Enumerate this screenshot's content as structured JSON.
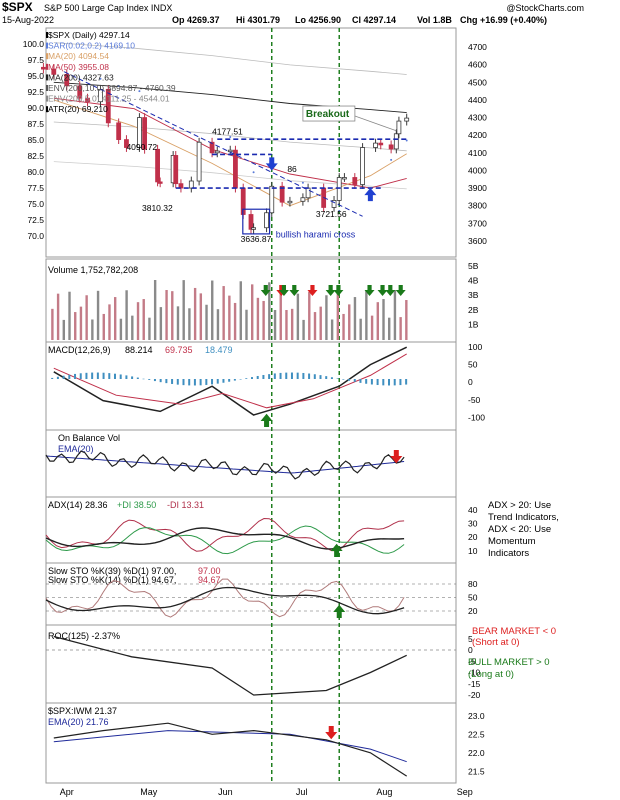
{
  "header": {
    "symbol": "$SPX",
    "name": "S&P 500 Large Cap Index",
    "exchange": "INDX",
    "date": "15-Aug-2022",
    "open": "Op 4269.37",
    "high": "Hi 4301.79",
    "low": "Lo 4256.90",
    "close": "Cl 4297.14",
    "vol": "Vol 1.8B",
    "chg": "Chg +16.99 (+0.40%)",
    "watermark": "@StockCharts.com"
  },
  "colors": {
    "up": "#3a3a3a",
    "down": "#c0304a",
    "ma20": "#d9a066",
    "ma50": "#c0304a",
    "ma200": "#222222",
    "env": "#888888",
    "sar": "#5a7bd8",
    "green_arrow": "#1a7a1a",
    "red_arrow": "#dd1f1f",
    "blue_arrow": "#2040d0",
    "guide_blue": "#1a2ab0",
    "macd_hist": "#3f8fc0",
    "plus_di": "#2e9a4a",
    "minus_di": "#b0304a",
    "ema": "#1f2a9a"
  },
  "x_axis": {
    "months": [
      "Apr",
      "May",
      "Jun",
      "Jul",
      "Aug",
      "Sep"
    ]
  },
  "price_panel": {
    "legend": [
      {
        "text": "$SPX (Daily) 4297.14",
        "color": "#000000"
      },
      {
        "text": "SAR(0.02,0.2) 4169.10",
        "color": "#5a7bd8"
      },
      {
        "text": "MA(20) 4094.54",
        "color": "#d9a066"
      },
      {
        "text": "MA(50) 3955.08",
        "color": "#c0304a"
      },
      {
        "text": "MA(200) 4327.63",
        "color": "#222222"
      },
      {
        "text": "ENV(200,10.0) 3894.87 - 4760.39",
        "color": "#555555"
      },
      {
        "text": "ENV(200,5.0) 4111.25 - 4544.01",
        "color": "#888888"
      },
      {
        "text": "ATR(20) 69.210",
        "color": "#000000"
      }
    ],
    "left_ticks": [
      "100.0",
      "97.5",
      "95.0",
      "92.5",
      "90.0",
      "87.5",
      "85.0",
      "82.5",
      "80.0",
      "77.5",
      "75.0",
      "72.5",
      "70.0"
    ],
    "right_ticks": [
      "4700",
      "4600",
      "4500",
      "4400",
      "4300",
      "4200",
      "4100",
      "4000",
      "3900",
      "3800",
      "3700",
      "3600"
    ],
    "annotations": {
      "breakout": "Breakout",
      "harami": "bullish harami cross",
      "p4177": "4177.51",
      "p4090": "4090.72",
      "p3810": "3810.32",
      "p3636": "3636.87",
      "p3721": "3721.56",
      "p86": "86"
    }
  },
  "volume_panel": {
    "label": "Volume 1,752,782,208",
    "ticks": [
      "5B",
      "4B",
      "3B",
      "2B",
      "1B"
    ]
  },
  "macd_panel": {
    "label": "MACD(12,26,9)",
    "v1": "88.214",
    "v2": "69.735",
    "v3": "18.479",
    "ticks": [
      "100",
      "50",
      "0",
      "-50",
      "-100"
    ]
  },
  "obv_panel": {
    "label": "On Balance Vol",
    "ema_label": "EMA(20)"
  },
  "adx_panel": {
    "label": "ADX(14) 28.36",
    "plus_di": "+DI 38.50",
    "minus_di": "-DI 13.31",
    "ticks": [
      "40",
      "30",
      "20",
      "10"
    ],
    "note": [
      "ADX > 20: Use",
      "Trend Indicators,",
      "ADX < 20: Use",
      "Momentum",
      "Indicators"
    ]
  },
  "sto_panel": {
    "label1": "Slow STO %K(39) %D(1) 97.00,",
    "label1_red": "97.00",
    "label2": "Slow STO %K(14) %D(1) 94.67,",
    "label2_red": "94.67",
    "ticks": [
      "80",
      "50",
      "20"
    ]
  },
  "roc_panel": {
    "label": "ROC(125) -2.37%",
    "ticks": [
      "5",
      "0",
      "-5",
      "-10",
      "-15",
      "-20"
    ],
    "bear": [
      "BEAR MARKET < 0",
      "(Short at 0)"
    ],
    "bull": [
      "BULL MARKET > 0",
      "(Long at 0)"
    ]
  },
  "ratio_panel": {
    "label": "$SPX:IWM 21.37",
    "ema_label": "EMA(20) 21.76",
    "ticks": [
      "23.0",
      "22.5",
      "22.0",
      "21.5"
    ]
  },
  "chart_data": [
    {
      "type": "line",
      "title": "$SPX (Daily) 4297.14",
      "series": [
        {
          "name": "$SPX (Daily) 4297.14",
          "points": [
            [
              "Mar-28",
              4575
            ],
            [
              "Apr-01",
              4545
            ],
            [
              "Apr-06",
              4480
            ],
            [
              "Apr-11",
              4410
            ],
            [
              "Apr-14",
              4390
            ],
            [
              "Apr-19",
              4460
            ],
            [
              "Apr-22",
              4270
            ],
            [
              "Apr-26",
              4175
            ],
            [
              "Apr-29",
              4130
            ],
            [
              "May-04",
              4300
            ],
            [
              "May-06",
              4120
            ],
            [
              "May-11",
              3935
            ],
            [
              "May-12",
              3930
            ],
            [
              "May-17",
              4085
            ],
            [
              "May-18",
              3925
            ],
            [
              "May-20",
              3900
            ],
            [
              "May-24",
              3940
            ],
            [
              "May-27",
              4160
            ],
            [
              "Jun-01",
              4100
            ],
            [
              "Jun-03",
              4110
            ],
            [
              "Jun-08",
              4115
            ],
            [
              "Jun-10",
              3900
            ],
            [
              "Jun-13",
              3750
            ],
            [
              "Jun-16",
              3666
            ],
            [
              "Jun-17",
              3675
            ],
            [
              "Jun-22",
              3760
            ],
            [
              "Jun-24",
              3910
            ],
            [
              "Jun-28",
              3820
            ],
            [
              "Jul-01",
              3825
            ],
            [
              "Jul-06",
              3845
            ],
            [
              "Jul-08",
              3900
            ],
            [
              "Jul-14",
              3790
            ],
            [
              "Jul-18",
              3830
            ],
            [
              "Jul-20",
              3960
            ],
            [
              "Jul-22",
              3960
            ],
            [
              "Jul-26",
              3920
            ],
            [
              "Jul-29",
              4130
            ],
            [
              "Aug-03",
              4155
            ],
            [
              "Aug-05",
              4145
            ],
            [
              "Aug-09",
              4122
            ],
            [
              "Aug-11",
              4208
            ],
            [
              "Aug-12",
              4280
            ],
            [
              "Aug-15",
              4297
            ]
          ]
        },
        {
          "name": "MA(200) 4327.63",
          "points": [
            [
              "Apr-01",
              4500
            ],
            [
              "May-02",
              4470
            ],
            [
              "Jun-01",
              4430
            ],
            [
              "Jul-01",
              4380
            ],
            [
              "Aug-01",
              4345
            ],
            [
              "Aug-15",
              4328
            ]
          ]
        },
        {
          "name": "MA(50) 3955.08",
          "points": [
            [
              "Apr-01",
              4410
            ],
            [
              "May-02",
              4350
            ],
            [
              "Jun-01",
              4120
            ],
            [
              "Jul-01",
              3980
            ],
            [
              "Aug-01",
              3900
            ],
            [
              "Aug-15",
              3955
            ]
          ]
        },
        {
          "name": "MA(20) 4094.54",
          "points": [
            [
              "Apr-01",
              4400
            ],
            [
              "May-02",
              4250
            ],
            [
              "Jun-01",
              4040
            ],
            [
              "Jul-01",
              3800
            ],
            [
              "Aug-01",
              3970
            ],
            [
              "Aug-15",
              4095
            ]
          ]
        }
      ],
      "y_axis": {
        "ticks": [
          3600,
          3700,
          3800,
          3900,
          4000,
          4100,
          4200,
          4300,
          4400,
          4500,
          4600,
          4700
        ],
        "range": [
          3560,
          4740
        ]
      },
      "horizontal_levels": [
        4177.51,
        4090.72,
        3900
      ],
      "annotations": [
        "Breakout",
        "bullish harami cross",
        "4177.51",
        "4090.72",
        "3810.32",
        "3636.87",
        "3721.56"
      ]
    },
    {
      "type": "bar",
      "title": "Volume 1,752,782,208",
      "y_axis": {
        "ticks": [
          "1B",
          "2B",
          "3B",
          "4B",
          "5B"
        ]
      },
      "approx_level": "2.0B-3.5B"
    },
    {
      "type": "line",
      "title": "MACD(12,26,9) 88.214, 69.735, 18.479",
      "series": [
        {
          "name": "MACD",
          "points": [
            [
              "Apr-01",
              20
            ],
            [
              "Apr-20",
              -60
            ],
            [
              "May-12",
              -90
            ],
            [
              "Jun-01",
              -20
            ],
            [
              "Jun-17",
              -100
            ],
            [
              "Jul-01",
              -70
            ],
            [
              "Jul-20",
              -20
            ],
            [
              "Aug-01",
              40
            ],
            [
              "Aug-15",
              88.2
            ]
          ]
        },
        {
          "name": "Signal",
          "points": [
            [
              "Apr-01",
              30
            ],
            [
              "Apr-25",
              -45
            ],
            [
              "May-20",
              -70
            ],
            [
              "Jun-05",
              -40
            ],
            [
              "Jun-22",
              -80
            ],
            [
              "Jul-10",
              -55
            ],
            [
              "Aug-01",
              10
            ],
            [
              "Aug-15",
              69.7
            ]
          ]
        }
      ],
      "y_axis": {
        "ticks": [
          -100,
          -50,
          0,
          50,
          100
        ]
      }
    },
    {
      "type": "line",
      "title": "ADX(14) 28.36 +DI 38.50 -DI 13.31",
      "series": [
        {
          "name": "ADX(14) 28.36",
          "last": 28.36
        },
        {
          "name": "+DI 38.50",
          "last": 38.5
        },
        {
          "name": "-DI 13.31",
          "last": 13.31
        }
      ],
      "y_axis": {
        "ticks": [
          10,
          20,
          30,
          40
        ]
      }
    },
    {
      "type": "line",
      "title": "Slow STO",
      "series": [
        {
          "name": "Slow STO %K(39) %D(1) 97.00",
          "last": 97.0
        },
        {
          "name": "Slow STO %K(14) %D(1) 94.67",
          "last": 94.67
        }
      ],
      "y_axis": {
        "ticks": [
          20,
          50,
          80
        ]
      }
    },
    {
      "type": "line",
      "title": "ROC(125) -2.37%",
      "series": [
        {
          "name": "ROC(125)",
          "points": [
            [
              "Apr-01",
              6
            ],
            [
              "May-01",
              -3
            ],
            [
              "Jun-01",
              -8
            ],
            [
              "Jun-17",
              -20
            ],
            [
              "Jul-15",
              -18
            ],
            [
              "Aug-01",
              -10
            ],
            [
              "Aug-15",
              -2.37
            ]
          ]
        }
      ],
      "y_axis": {
        "ticks": [
          -20,
          -15,
          -10,
          -5,
          0,
          5
        ]
      }
    },
    {
      "type": "line",
      "title": "$SPX:IWM 21.37",
      "series": [
        {
          "name": "$SPX:IWM",
          "points": [
            [
              "Apr-01",
              22.4
            ],
            [
              "Apr-20",
              22.6
            ],
            [
              "May-15",
              22.8
            ],
            [
              "Jun-01",
              22.5
            ],
            [
              "Jun-17",
              22.6
            ],
            [
              "Jul-15",
              22.35
            ],
            [
              "Aug-01",
              22.0
            ],
            [
              "Aug-15",
              21.37
            ]
          ]
        },
        {
          "name": "EMA(20) 21.76",
          "points": [
            [
              "Apr-01",
              22.3
            ],
            [
              "May-15",
              22.6
            ],
            [
              "Jul-01",
              22.5
            ],
            [
              "Aug-01",
              22.1
            ],
            [
              "Aug-15",
              21.76
            ]
          ]
        }
      ],
      "y_axis": {
        "ticks": [
          21.5,
          22.0,
          22.5,
          23.0
        ]
      }
    }
  ]
}
